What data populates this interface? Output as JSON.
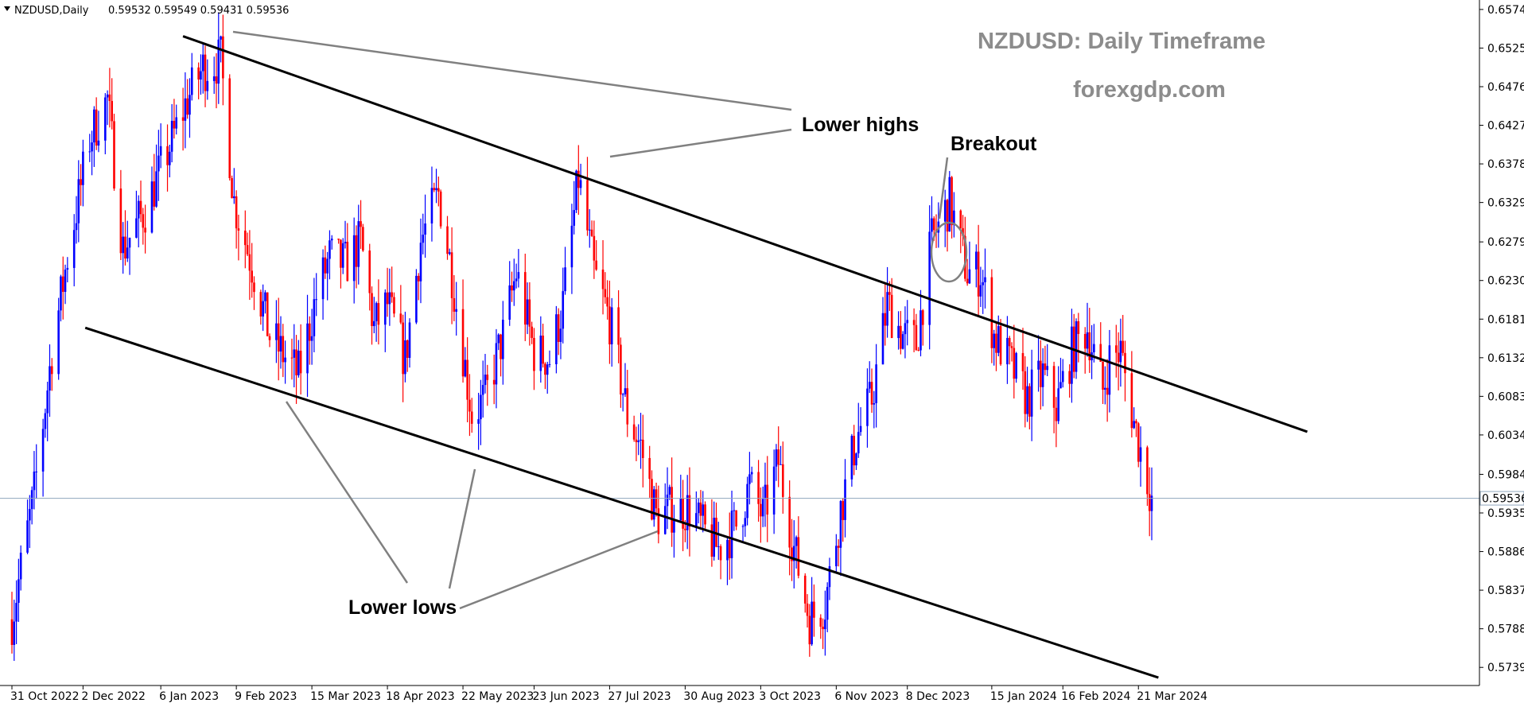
{
  "header": {
    "symbol": "NZDUSD,Daily",
    "ohlc": "0.59532 0.59549 0.59431 0.59536"
  },
  "chart_data": {
    "type": "candlestick",
    "title": "NZDUSD: Daily Timeframe",
    "subtitle": "forexgdp.com",
    "current_price": 0.59536,
    "current_price_label": "0.59536",
    "ylim": [
      0.5716,
      0.6586
    ],
    "y_ticks": [
      "0.65740",
      "0.65250",
      "0.64760",
      "0.64270",
      "0.63780",
      "0.63290",
      "0.62790",
      "0.62300",
      "0.61810",
      "0.61320",
      "0.60830",
      "0.60340",
      "0.59840",
      "0.59350",
      "0.58860",
      "0.58370",
      "0.57880",
      "0.57390"
    ],
    "x_ticks": [
      "31 Oct 2022",
      "2 Dec 2022",
      "6 Jan 2023",
      "9 Feb 2023",
      "15 Mar 2023",
      "18 Apr 2023",
      "22 May 2023",
      "23 Jun 2023",
      "27 Jul 2023",
      "30 Aug 2023",
      "3 Oct 2023",
      "6 Nov 2023",
      "8 Dec 2023",
      "15 Jan 2024",
      "16 Feb 2024",
      "21 Mar 2024"
    ],
    "x_range": [
      "2022-10-31",
      "2024-03-27"
    ],
    "bull_color": "#0000ff",
    "bear_color": "#ff0000",
    "price_path": [
      [
        "2022-10-31",
        0.58
      ],
      [
        "2022-11-10",
        0.596
      ],
      [
        "2022-11-18",
        0.614
      ],
      [
        "2022-11-25",
        0.626
      ],
      [
        "2022-12-05",
        0.641
      ],
      [
        "2022-12-13",
        0.646
      ],
      [
        "2022-12-20",
        0.627
      ],
      [
        "2022-12-30",
        0.632
      ],
      [
        "2023-01-10",
        0.64
      ],
      [
        "2023-01-18",
        0.646
      ],
      [
        "2023-01-25",
        0.65
      ],
      [
        "2023-02-02",
        0.651
      ],
      [
        "2023-02-08",
        0.633
      ],
      [
        "2023-02-17",
        0.624
      ],
      [
        "2023-02-24",
        0.616
      ],
      [
        "2023-03-01",
        0.614
      ],
      [
        "2023-03-09",
        0.611
      ],
      [
        "2023-03-17",
        0.621
      ],
      [
        "2023-03-23",
        0.626
      ],
      [
        "2023-03-30",
        0.625
      ],
      [
        "2023-04-06",
        0.628
      ],
      [
        "2023-04-12",
        0.617
      ],
      [
        "2023-04-18",
        0.62
      ],
      [
        "2023-04-26",
        0.613
      ],
      [
        "2023-05-03",
        0.628
      ],
      [
        "2023-05-11",
        0.634
      ],
      [
        "2023-05-17",
        0.624
      ],
      [
        "2023-05-26",
        0.606
      ],
      [
        "2023-06-01",
        0.608
      ],
      [
        "2023-06-09",
        0.616
      ],
      [
        "2023-06-15",
        0.624
      ],
      [
        "2023-06-23",
        0.614
      ],
      [
        "2023-06-30",
        0.613
      ],
      [
        "2023-07-06",
        0.62
      ],
      [
        "2023-07-13",
        0.636
      ],
      [
        "2023-07-20",
        0.624
      ],
      [
        "2023-07-27",
        0.618
      ],
      [
        "2023-08-04",
        0.606
      ],
      [
        "2023-08-10",
        0.602
      ],
      [
        "2023-08-17",
        0.593
      ],
      [
        "2023-08-24",
        0.594
      ],
      [
        "2023-09-01",
        0.594
      ],
      [
        "2023-09-08",
        0.591
      ],
      [
        "2023-09-14",
        0.589
      ],
      [
        "2023-09-22",
        0.592
      ],
      [
        "2023-09-28",
        0.597
      ],
      [
        "2023-10-04",
        0.593
      ],
      [
        "2023-10-11",
        0.6
      ],
      [
        "2023-10-18",
        0.589
      ],
      [
        "2023-10-25",
        0.58
      ],
      [
        "2023-11-01",
        0.582
      ],
      [
        "2023-11-08",
        0.594
      ],
      [
        "2023-11-15",
        0.603
      ],
      [
        "2023-11-22",
        0.608
      ],
      [
        "2023-11-29",
        0.62
      ],
      [
        "2023-12-06",
        0.616
      ],
      [
        "2023-12-12",
        0.615
      ],
      [
        "2023-12-19",
        0.628
      ],
      [
        "2023-12-27",
        0.633
      ],
      [
        "2024-01-04",
        0.624
      ],
      [
        "2024-01-10",
        0.624
      ],
      [
        "2024-01-16",
        0.616
      ],
      [
        "2024-01-24",
        0.612
      ],
      [
        "2024-01-31",
        0.608
      ],
      [
        "2024-02-07",
        0.611
      ],
      [
        "2024-02-13",
        0.607
      ],
      [
        "2024-02-20",
        0.614
      ],
      [
        "2024-02-27",
        0.617
      ],
      [
        "2024-03-05",
        0.609
      ],
      [
        "2024-03-08",
        0.613
      ],
      [
        "2024-03-13",
        0.614
      ],
      [
        "2024-03-19",
        0.605
      ],
      [
        "2024-03-27",
        0.5954
      ]
    ],
    "trendlines": [
      {
        "name": "upper-channel-line",
        "from": [
          "2023-01-16",
          0.654
        ],
        "to": [
          "2024-06-05",
          0.6038
        ]
      },
      {
        "name": "lower-channel-line",
        "from": [
          "2022-12-03",
          0.617
        ],
        "to": [
          "2024-03-30",
          0.5726
        ]
      }
    ],
    "annotations": {
      "lower_highs": "Lower highs",
      "lower_lows": "Lower lows",
      "breakout": "Breakout"
    }
  }
}
